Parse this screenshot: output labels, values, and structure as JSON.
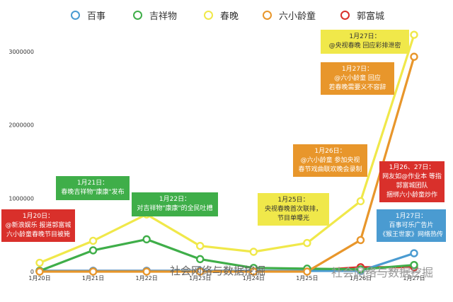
{
  "legend": [
    {
      "name": "百事",
      "color": "#4a9bd1"
    },
    {
      "name": "吉祥物",
      "color": "#3fae49"
    },
    {
      "name": "春晚",
      "color": "#f0e84a"
    },
    {
      "name": "六小龄童",
      "color": "#e8962b"
    },
    {
      "name": "郭富城",
      "color": "#d9302b"
    }
  ],
  "chart_data": {
    "type": "line",
    "categories": [
      "1月20日",
      "1月21日",
      "1月22日",
      "1月23日",
      "1月24日",
      "1月25日",
      "1月26日",
      "1月27日"
    ],
    "y_ticks": [
      "0",
      "1000000",
      "2000000",
      "3000000"
    ],
    "ylim": [
      0,
      3400000
    ],
    "grid": false,
    "legend_position": "top",
    "series": [
      {
        "name": "春晚",
        "color": "#f0e84a",
        "values": [
          120000,
          420000,
          780000,
          350000,
          270000,
          390000,
          960000,
          3230000
        ]
      },
      {
        "name": "六小龄童",
        "color": "#e8962b",
        "values": [
          0,
          0,
          0,
          0,
          0,
          0,
          430000,
          2930000
        ]
      },
      {
        "name": "吉祥物",
        "color": "#3fae49",
        "values": [
          10000,
          290000,
          440000,
          170000,
          50000,
          40000,
          30000,
          90000
        ]
      },
      {
        "name": "百事",
        "color": "#4a9bd1",
        "values": [
          10000,
          10000,
          10000,
          10000,
          10000,
          10000,
          10000,
          250000
        ]
      },
      {
        "name": "郭富城",
        "color": "#d9302b",
        "values": [
          10000,
          10000,
          10000,
          10000,
          10000,
          10000,
          60000,
          60000
        ]
      }
    ]
  },
  "callouts": [
    {
      "lines": [
        "1月27日：",
        "@央视春晚 回应彩排泄密"
      ],
      "color": "#f0e84a"
    },
    {
      "lines": [
        "1月27日：",
        "@六小龄童 回应",
        "若春晚需要义不容辞"
      ],
      "color": "#e8962b"
    },
    {
      "lines": [
        "1月26日：",
        "@六小龄童 参加央视",
        "春节戏曲联欢晚会录制"
      ],
      "color": "#e8962b"
    },
    {
      "lines": [
        "1月21日：",
        "春晚吉祥物\"康康\"发布"
      ],
      "color": "#3fae49"
    },
    {
      "lines": [
        "1月22日：",
        "对吉祥物\"康康\"的全民吐槽"
      ],
      "color": "#3fae49"
    },
    {
      "lines": [
        "1月20日：",
        "@新浪娱乐 报道郭富城",
        "六小龄童春晚节目被毙"
      ],
      "color": "#d9302b"
    },
    {
      "lines": [
        "1月25日：",
        "央视春晚首次联排，",
        "节目单曝光"
      ],
      "color": "#f0e84a"
    },
    {
      "lines": [
        "1月26、27日：",
        "网友如@作业本 等指",
        "郭富城团队",
        "捆绑六小龄童炒作"
      ],
      "color": "#d9302b"
    },
    {
      "lines": [
        "1月27日：",
        "百事可乐广告片",
        "《猴王世家》网络热传"
      ],
      "color": "#4a9bd1"
    }
  ],
  "watermarks": [
    "社会网络与数据挖掘",
    "社会网络与数据挖掘"
  ]
}
